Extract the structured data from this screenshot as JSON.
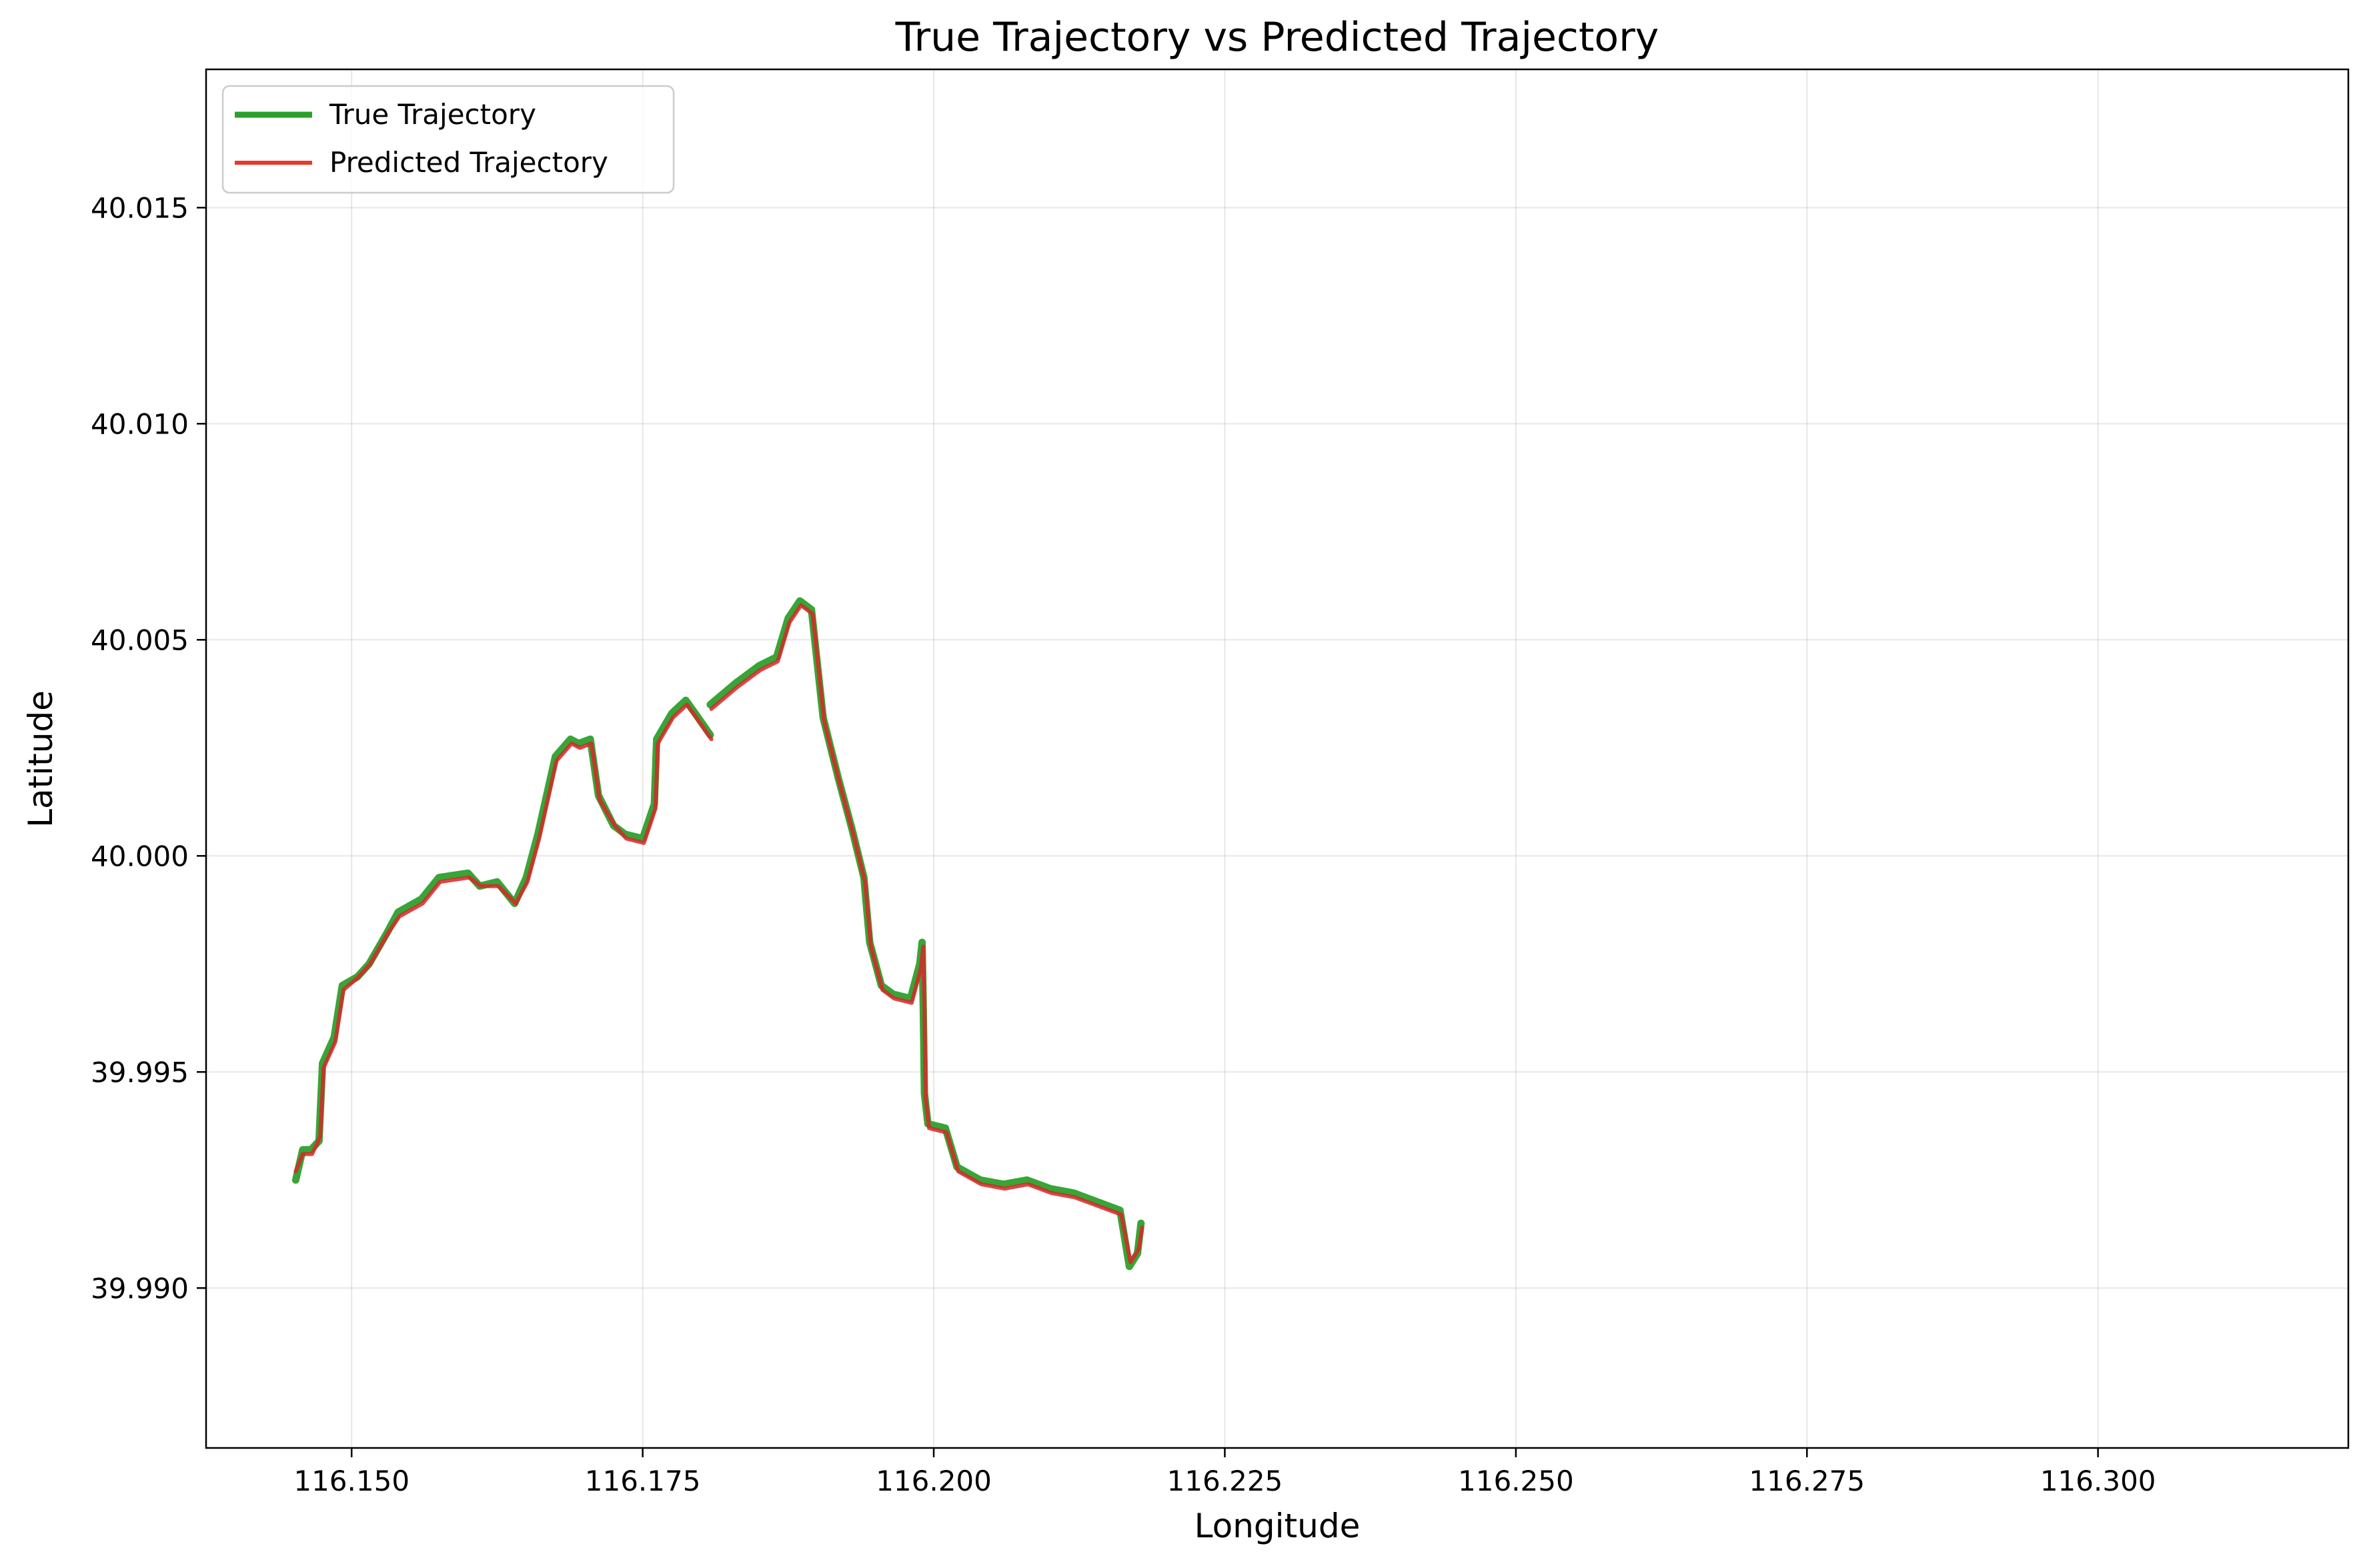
{
  "chart_data": {
    "type": "line",
    "title": "True Trajectory vs Predicted Trajectory",
    "xlabel": "Longitude",
    "ylabel": "Latitude",
    "xlim": [
      116.1375,
      116.3215
    ],
    "ylim": [
      39.9863,
      40.0182
    ],
    "xticks": [
      "116.150",
      "116.175",
      "116.200",
      "116.225",
      "116.250",
      "116.275",
      "116.300"
    ],
    "yticks": [
      "39.990",
      "39.995",
      "40.000",
      "40.005",
      "40.010",
      "40.015"
    ],
    "grid": true,
    "legend": "top-left",
    "series": [
      {
        "name": "True Trajectory",
        "color": "#2ca02c",
        "points": [
          [
            116.1452,
            39.9925
          ],
          [
            116.1458,
            39.9932
          ],
          [
            116.1465,
            39.9932
          ],
          [
            116.1472,
            39.9934
          ],
          [
            116.1475,
            39.9952
          ],
          [
            116.1485,
            39.9958
          ],
          [
            116.1492,
            39.997
          ],
          [
            116.1505,
            39.9972
          ],
          [
            116.1515,
            39.9975
          ],
          [
            116.153,
            39.9982
          ],
          [
            116.154,
            39.9987
          ],
          [
            116.156,
            39.999
          ],
          [
            116.1575,
            39.9995
          ],
          [
            116.16,
            39.9996
          ],
          [
            116.161,
            39.9993
          ],
          [
            116.1625,
            39.9994
          ],
          [
            116.164,
            39.9989
          ],
          [
            116.165,
            39.9995
          ],
          [
            116.166,
            40.0005
          ],
          [
            116.167,
            40.0017
          ],
          [
            116.1675,
            40.0023
          ],
          [
            116.1688,
            40.0027
          ],
          [
            116.1695,
            40.0026
          ],
          [
            116.1705,
            40.0027
          ],
          [
            116.1712,
            40.0014
          ],
          [
            116.1725,
            40.0007
          ],
          [
            116.1735,
            40.0005
          ],
          [
            116.175,
            40.0004
          ],
          [
            116.176,
            40.0012
          ],
          [
            116.1762,
            40.0027
          ],
          [
            116.1775,
            40.0033
          ],
          [
            116.1787,
            40.0036
          ],
          [
            116.1795,
            40.0033
          ],
          [
            116.1808,
            40.0028
          ]
        ]
      },
      {
        "name": "Predicted Trajectory",
        "color": "#d62728",
        "points": [
          [
            116.1452,
            39.9927
          ],
          [
            116.1458,
            39.9931
          ],
          [
            116.1466,
            39.9931
          ],
          [
            116.1473,
            39.9935
          ],
          [
            116.1476,
            39.9951
          ],
          [
            116.1486,
            39.9957
          ],
          [
            116.1493,
            39.9969
          ],
          [
            116.1506,
            39.9972
          ],
          [
            116.1516,
            39.9975
          ],
          [
            116.1531,
            39.9982
          ],
          [
            116.1541,
            39.9986
          ],
          [
            116.1561,
            39.9989
          ],
          [
            116.1576,
            39.9994
          ],
          [
            116.1601,
            39.9995
          ],
          [
            116.1611,
            39.9993
          ],
          [
            116.1626,
            39.9993
          ],
          [
            116.1641,
            39.9989
          ],
          [
            116.1651,
            39.9994
          ],
          [
            116.1661,
            40.0004
          ],
          [
            116.1671,
            40.0016
          ],
          [
            116.1676,
            40.0022
          ],
          [
            116.1689,
            40.0026
          ],
          [
            116.1696,
            40.0025
          ],
          [
            116.1706,
            40.0026
          ],
          [
            116.1713,
            40.0013
          ],
          [
            116.1726,
            40.0007
          ],
          [
            116.1736,
            40.0004
          ],
          [
            116.1751,
            40.0003
          ],
          [
            116.1761,
            40.0011
          ],
          [
            116.1763,
            40.0026
          ],
          [
            116.1776,
            40.0032
          ],
          [
            116.1788,
            40.0035
          ],
          [
            116.1796,
            40.0032
          ],
          [
            116.1809,
            40.0027
          ]
        ]
      },
      {
        "name": "",
        "color": "#2ca02c",
        "points": [
          [
            116.1808,
            40.0035
          ],
          [
            116.183,
            40.004
          ],
          [
            116.185,
            40.0044
          ],
          [
            116.1865,
            40.0046
          ],
          [
            116.1875,
            40.0055
          ],
          [
            116.1885,
            40.0059
          ],
          [
            116.1895,
            40.0057
          ],
          [
            116.1905,
            40.0032
          ],
          [
            116.1918,
            40.0018
          ],
          [
            116.193,
            40.0006
          ],
          [
            116.194,
            39.9995
          ],
          [
            116.1945,
            39.998
          ],
          [
            116.1955,
            39.997
          ],
          [
            116.1965,
            39.9968
          ],
          [
            116.198,
            39.9967
          ],
          [
            116.1988,
            39.9975
          ],
          [
            116.199,
            39.998
          ],
          [
            116.1991,
            39.9965
          ],
          [
            116.1992,
            39.9945
          ],
          [
            116.1995,
            39.9938
          ],
          [
            116.201,
            39.9937
          ],
          [
            116.202,
            39.9928
          ],
          [
            116.204,
            39.9925
          ],
          [
            116.206,
            39.9924
          ],
          [
            116.208,
            39.9925
          ],
          [
            116.21,
            39.9923
          ],
          [
            116.212,
            39.9922
          ],
          [
            116.214,
            39.992
          ],
          [
            116.216,
            39.9918
          ],
          [
            116.2168,
            39.9905
          ],
          [
            116.2175,
            39.9908
          ],
          [
            116.2178,
            39.9915
          ]
        ]
      },
      {
        "name": "",
        "color": "#d62728",
        "points": [
          [
            116.1809,
            40.0034
          ],
          [
            116.1831,
            40.0039
          ],
          [
            116.1851,
            40.0043
          ],
          [
            116.1866,
            40.0045
          ],
          [
            116.1876,
            40.0054
          ],
          [
            116.1886,
            40.0058
          ],
          [
            116.1896,
            40.0056
          ],
          [
            116.1906,
            40.0031
          ],
          [
            116.1919,
            40.0017
          ],
          [
            116.1931,
            40.0005
          ],
          [
            116.1941,
            39.9994
          ],
          [
            116.1946,
            39.9979
          ],
          [
            116.1956,
            39.9969
          ],
          [
            116.1966,
            39.9967
          ],
          [
            116.1981,
            39.9966
          ],
          [
            116.1989,
            39.9974
          ],
          [
            116.1991,
            39.9979
          ],
          [
            116.1992,
            39.9964
          ],
          [
            116.1993,
            39.9944
          ],
          [
            116.1996,
            39.9937
          ],
          [
            116.2011,
            39.9936
          ],
          [
            116.2021,
            39.9927
          ],
          [
            116.2041,
            39.9924
          ],
          [
            116.2061,
            39.9923
          ],
          [
            116.2081,
            39.9924
          ],
          [
            116.2101,
            39.9922
          ],
          [
            116.2121,
            39.9921
          ],
          [
            116.2141,
            39.9919
          ],
          [
            116.2161,
            39.9917
          ],
          [
            116.2169,
            39.9906
          ],
          [
            116.2176,
            39.9909
          ],
          [
            116.2179,
            39.9914
          ]
        ]
      }
    ]
  }
}
